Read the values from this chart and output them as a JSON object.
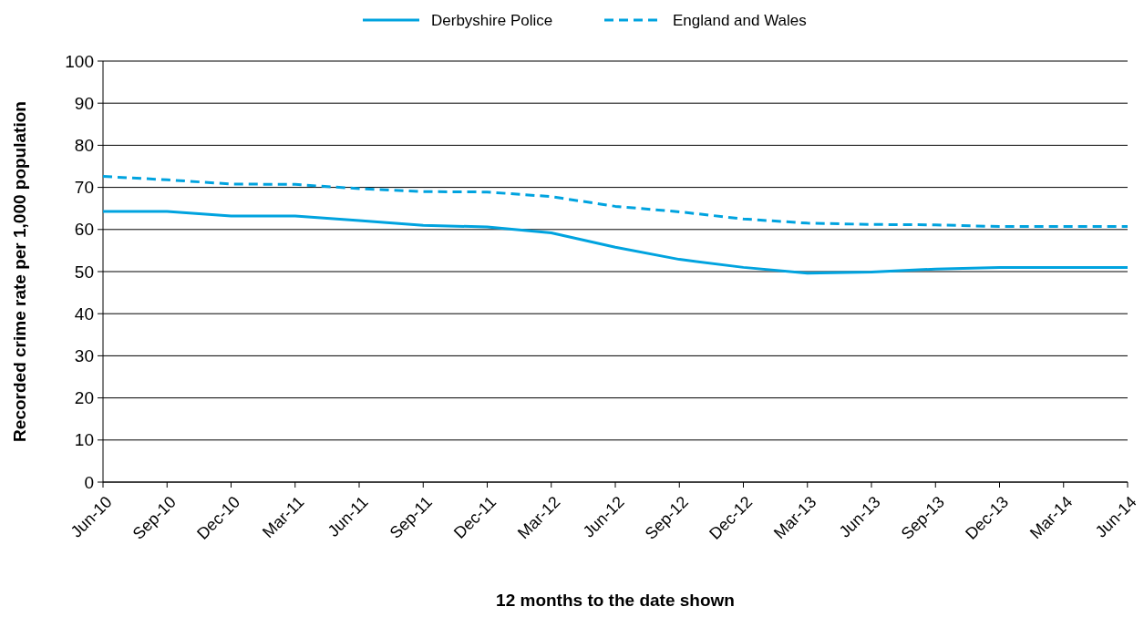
{
  "chart_data": {
    "type": "line",
    "xlabel": "12 months to the date shown",
    "ylabel": "Recorded crime rate per 1,000 population",
    "categories": [
      "Jun-10",
      "Sep-10",
      "Dec-10",
      "Mar-11",
      "Jun-11",
      "Sep-11",
      "Dec-11",
      "Mar-12",
      "Jun-12",
      "Sep-12",
      "Dec-12",
      "Mar-13",
      "Jun-13",
      "Sep-13",
      "Dec-13",
      "Mar-14",
      "Jun-14"
    ],
    "series": [
      {
        "name": "Derbyshire Police",
        "color": "#00a3df",
        "line_style": "solid",
        "values": [
          64.3,
          64.3,
          63.2,
          63.2,
          62.1,
          61,
          60.6,
          59.2,
          55.8,
          52.9,
          51,
          49.6,
          49.9,
          50.6,
          51,
          51,
          51
        ]
      },
      {
        "name": "England and Wales",
        "color": "#00a3df",
        "line_style": "dashed",
        "values": [
          72.6,
          71.8,
          70.8,
          70.7,
          69.7,
          69,
          68.9,
          67.8,
          65.5,
          64.2,
          62.5,
          61.5,
          61.2,
          61.1,
          60.7,
          60.7,
          60.7
        ]
      }
    ],
    "ylim": [
      0,
      100
    ],
    "yticks": [
      0,
      10,
      20,
      30,
      40,
      50,
      60,
      70,
      80,
      90,
      100
    ],
    "grid": "y",
    "legend": "top",
    "marker": "none"
  }
}
